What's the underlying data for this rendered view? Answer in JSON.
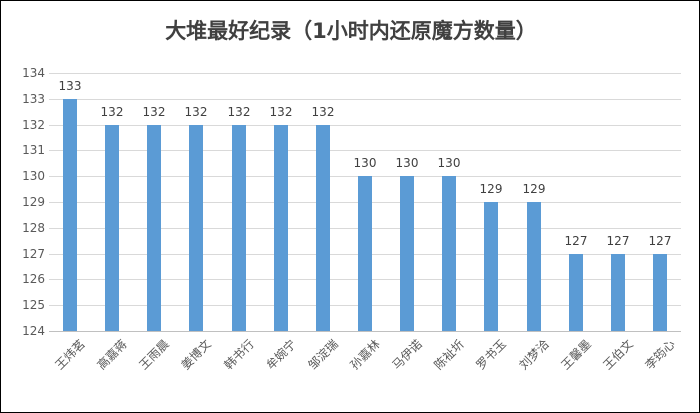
{
  "window": {
    "background": "#ffffff",
    "border_color": "#000000"
  },
  "chart_data": {
    "type": "bar",
    "title": "大堆最好纪录（1小时内还原魔方数量）",
    "categories": [
      "王炜茗",
      "高嘉蒋",
      "王雨晨",
      "姜博文",
      "韩书行",
      "牟婉宁",
      "邹淀瑞",
      "孙嘉林",
      "马伊诺",
      "陈祉圻",
      "罗书玉",
      "刘梦洽",
      "王馨墨",
      "王伯文",
      "李筠心"
    ],
    "values": [
      133,
      132,
      132,
      132,
      132,
      132,
      132,
      130,
      130,
      130,
      129,
      129,
      127,
      127,
      127
    ],
    "data_labels": [
      "133",
      "132",
      "132",
      "132",
      "132",
      "132",
      "132",
      "130",
      "130",
      "130",
      "129",
      "129",
      "127",
      "127",
      "127"
    ],
    "ytick_labels": [
      "124",
      "125",
      "126",
      "127",
      "128",
      "129",
      "130",
      "131",
      "132",
      "133",
      "134"
    ],
    "xlabel": "",
    "ylabel": "",
    "ylim": [
      124,
      134
    ],
    "ytick_step": 1,
    "grid": true,
    "legend": false,
    "show_data_labels": true,
    "colors": {
      "bar": "#5B9BD5",
      "gridline": "#D9D9D9",
      "axis_line": "#C0C0C0",
      "tick_label": "#595959",
      "data_label": "#404040",
      "title": "#404040"
    }
  }
}
